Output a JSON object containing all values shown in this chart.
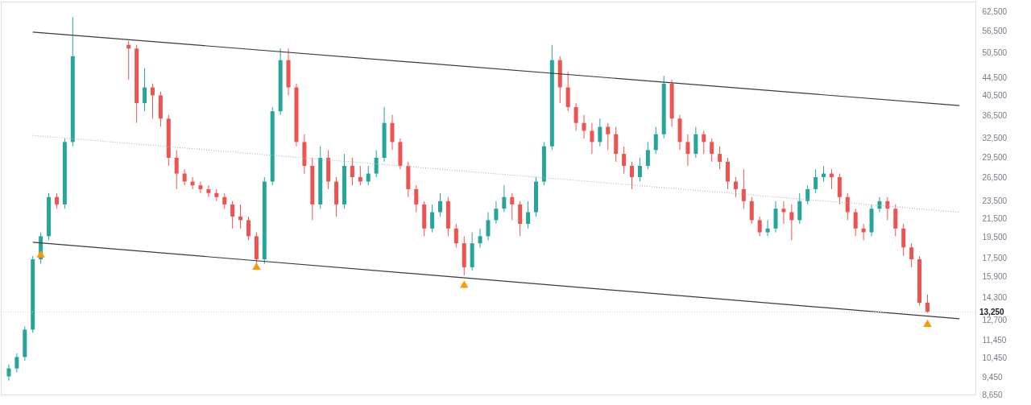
{
  "chart_data": {
    "type": "candlestick",
    "categories": [
      null,
      null,
      null,
      null,
      null,
      null,
      null,
      null,
      null,
      null,
      null,
      null,
      null,
      null,
      null,
      null,
      null,
      null,
      null,
      null,
      null,
      null,
      null,
      null,
      null,
      null,
      null,
      null,
      null,
      null,
      null,
      null,
      null,
      null,
      null,
      null,
      null,
      null,
      null,
      null,
      null,
      null,
      null,
      null,
      null,
      null,
      null,
      null,
      null,
      null,
      null,
      null,
      null,
      null,
      null,
      null,
      null,
      null,
      null,
      null,
      null,
      null,
      null,
      null,
      null,
      null,
      null,
      null,
      null,
      null,
      null,
      null,
      null,
      null,
      null,
      null,
      null,
      null,
      null,
      null,
      null,
      null,
      null,
      null,
      null,
      null,
      null,
      null,
      null,
      null,
      null,
      null,
      null,
      null,
      null,
      null,
      null,
      null,
      null,
      null,
      null,
      null,
      null,
      null,
      null,
      null,
      null,
      null,
      null,
      null,
      null,
      null,
      null,
      null,
      null,
      null,
      null,
      null,
      null,
      null,
      null
    ],
    "ylim": [
      8650,
      65900
    ],
    "log": true,
    "grid": false,
    "tick_labels": "y",
    "yticks": [
      {
        "value": 8650,
        "label": "8,650"
      },
      {
        "value": 9450,
        "label": "9,450"
      },
      {
        "value": 10450,
        "label": "10,450"
      },
      {
        "value": 11450,
        "label": "11,450"
      },
      {
        "value": 12700,
        "label": "12,700"
      },
      {
        "value": 14300,
        "label": "14,300"
      },
      {
        "value": 15900,
        "label": "15,900"
      },
      {
        "value": 17500,
        "label": "17,500"
      },
      {
        "value": 19500,
        "label": "19,500"
      },
      {
        "value": 21500,
        "label": "21,500"
      },
      {
        "value": 23500,
        "label": "23,500"
      },
      {
        "value": 26500,
        "label": "26,500"
      },
      {
        "value": 29500,
        "label": "29,500"
      },
      {
        "value": 32500,
        "label": "32,500"
      },
      {
        "value": 36500,
        "label": "36,500"
      },
      {
        "value": 40500,
        "label": "40,500"
      },
      {
        "value": 44500,
        "label": "44,500"
      },
      {
        "value": 50500,
        "label": "50,500"
      },
      {
        "value": 56500,
        "label": "56,500"
      },
      {
        "value": 62500,
        "label": "62,500"
      }
    ],
    "ref_lines": [
      {
        "axis": "y",
        "value": 13250,
        "label": "13,250",
        "color": "#d1d4dc",
        "line_style": "dotted"
      }
    ],
    "series": [
      {
        "ohlc": [
          [
            9500,
            10100,
            9300,
            9900
          ],
          [
            9900,
            10700,
            9700,
            10500
          ],
          [
            10500,
            12300,
            10300,
            12100
          ],
          [
            12100,
            17700,
            11900,
            17400
          ],
          [
            17400,
            20000,
            17000,
            19600
          ],
          [
            19600,
            24500,
            19200,
            24000
          ],
          [
            24000,
            24500,
            22600,
            23100
          ],
          [
            23100,
            32500,
            22600,
            31900
          ],
          [
            31900,
            60800,
            31200,
            49700
          ],
          null,
          null,
          null,
          null,
          null,
          null,
          [
            52700,
            53800,
            44000,
            51700
          ],
          [
            51700,
            52700,
            35200,
            39000
          ],
          [
            39000,
            46700,
            37400,
            42300
          ],
          [
            42300,
            43100,
            36000,
            40600
          ],
          [
            40600,
            41400,
            34500,
            36000
          ],
          [
            36000,
            36700,
            28200,
            29400
          ],
          [
            29400,
            30600,
            25000,
            27100
          ],
          [
            27100,
            27700,
            25500,
            26000
          ],
          [
            26000,
            26600,
            25000,
            25500
          ],
          [
            25500,
            26000,
            24500,
            25000
          ],
          [
            25000,
            25500,
            24000,
            24500
          ],
          [
            24500,
            25000,
            23500,
            24000
          ],
          [
            24000,
            24500,
            22600,
            23100
          ],
          [
            23100,
            23500,
            20400,
            21700
          ],
          [
            21700,
            23100,
            20400,
            21300
          ],
          [
            21300,
            21700,
            19200,
            19600
          ],
          [
            19600,
            20000,
            17000,
            17400
          ],
          [
            17400,
            26600,
            17000,
            26000
          ],
          [
            26000,
            38200,
            25500,
            37400
          ],
          [
            37400,
            51700,
            36700,
            48700
          ],
          [
            48700,
            51700,
            40600,
            42300
          ],
          [
            42300,
            43100,
            31200,
            31900
          ],
          [
            31900,
            33200,
            27100,
            28200
          ],
          [
            28200,
            29400,
            21300,
            23100
          ],
          [
            23100,
            31200,
            22600,
            29400
          ],
          [
            29400,
            30600,
            25000,
            26000
          ],
          [
            26000,
            26600,
            21700,
            23100
          ],
          [
            23100,
            30000,
            22600,
            28200
          ],
          [
            28200,
            29400,
            25500,
            26600
          ],
          [
            26600,
            28200,
            25500,
            26000
          ],
          [
            26000,
            28200,
            25500,
            27100
          ],
          [
            27100,
            30600,
            26600,
            29400
          ],
          [
            29400,
            38200,
            28800,
            35200
          ],
          [
            35200,
            36700,
            30600,
            31900
          ],
          [
            31900,
            32500,
            27700,
            28200
          ],
          [
            28200,
            28800,
            24000,
            25000
          ],
          [
            25000,
            25500,
            22200,
            23100
          ],
          [
            23100,
            23500,
            19600,
            20400
          ],
          [
            20400,
            23100,
            20000,
            22200
          ],
          [
            22200,
            24500,
            21700,
            23500
          ],
          [
            23500,
            24000,
            19600,
            20400
          ],
          [
            20400,
            20900,
            18500,
            18900
          ],
          [
            18900,
            19600,
            16000,
            16700
          ],
          [
            16700,
            20000,
            16400,
            18900
          ],
          [
            18900,
            20400,
            18500,
            19600
          ],
          [
            19600,
            22200,
            19200,
            21300
          ],
          [
            21300,
            23500,
            20900,
            22600
          ],
          [
            22600,
            25500,
            22200,
            24000
          ],
          [
            24000,
            24500,
            21300,
            23100
          ],
          [
            23100,
            23500,
            19600,
            20900
          ],
          [
            20900,
            23500,
            20400,
            22200
          ],
          [
            22200,
            26600,
            21700,
            26000
          ],
          [
            26000,
            31900,
            25500,
            31200
          ],
          [
            31200,
            52700,
            30600,
            48700
          ],
          [
            48700,
            49700,
            39000,
            42300
          ],
          [
            42300,
            45800,
            37400,
            38200
          ],
          [
            38200,
            39000,
            33800,
            35200
          ],
          [
            35200,
            36700,
            32500,
            33800
          ],
          [
            33800,
            35200,
            30000,
            31900
          ],
          [
            31900,
            36000,
            31200,
            34500
          ],
          [
            34500,
            35200,
            30600,
            33200
          ],
          [
            33200,
            34500,
            28800,
            30000
          ],
          [
            30000,
            31200,
            27100,
            28200
          ],
          [
            28200,
            28800,
            25000,
            26600
          ],
          [
            26600,
            29400,
            26000,
            28200
          ],
          [
            28200,
            31900,
            27700,
            30600
          ],
          [
            30600,
            34500,
            30000,
            33200
          ],
          [
            33200,
            44900,
            32500,
            43100
          ],
          [
            43100,
            44000,
            34500,
            36000
          ],
          [
            36000,
            36700,
            30600,
            31900
          ],
          [
            31900,
            33200,
            28200,
            30000
          ],
          [
            30000,
            34500,
            29400,
            33200
          ],
          [
            33200,
            33800,
            30000,
            31900
          ],
          [
            31900,
            32500,
            28800,
            30000
          ],
          [
            30000,
            31200,
            27700,
            28800
          ],
          [
            28800,
            29400,
            25000,
            26000
          ],
          [
            26000,
            26600,
            24000,
            25000
          ],
          [
            25000,
            27700,
            22600,
            23500
          ],
          [
            23500,
            24000,
            20900,
            21300
          ],
          [
            21300,
            21700,
            19600,
            20000
          ],
          [
            20000,
            21300,
            19600,
            20400
          ],
          [
            20400,
            23500,
            20000,
            22600
          ],
          [
            22600,
            23500,
            20900,
            22200
          ],
          [
            22200,
            23100,
            19200,
            21300
          ],
          [
            21300,
            24500,
            20900,
            23500
          ],
          [
            23500,
            25500,
            23100,
            25000
          ],
          [
            25000,
            27700,
            24500,
            26600
          ],
          [
            26600,
            28200,
            26000,
            27100
          ],
          [
            27100,
            27700,
            25000,
            26600
          ],
          [
            26600,
            27100,
            23100,
            24000
          ],
          [
            24000,
            24500,
            21300,
            22200
          ],
          [
            22200,
            22600,
            19600,
            20400
          ],
          [
            20400,
            20900,
            19200,
            20000
          ],
          [
            20000,
            23100,
            19600,
            22600
          ],
          [
            22600,
            24000,
            22200,
            23500
          ],
          [
            23500,
            24000,
            21300,
            22600
          ],
          [
            22600,
            23100,
            19600,
            20400
          ],
          [
            20400,
            20900,
            17700,
            18500
          ],
          [
            18500,
            18900,
            16700,
            17400
          ],
          [
            17400,
            17700,
            13700,
            13900
          ],
          [
            13900,
            14500,
            13200,
            13250
          ],
          null,
          null,
          null,
          null,
          null
        ],
        "colors": [
          "#26a69a",
          "#26a69a",
          "#26a69a",
          "#26a69a",
          "#26a69a",
          "#26a69a",
          "#ef5350",
          "#26a69a",
          "#26a69a",
          null,
          null,
          null,
          null,
          null,
          null,
          "#ef5350",
          "#ef5350",
          "#26a69a",
          "#ef5350",
          "#ef5350",
          "#ef5350",
          "#ef5350",
          "#ef5350",
          "#ef5350",
          "#ef5350",
          "#ef5350",
          "#ef5350",
          "#ef5350",
          "#ef5350",
          "#ef5350",
          "#ef5350",
          "#ef5350",
          "#26a69a",
          "#26a69a",
          "#26a69a",
          "#ef5350",
          "#ef5350",
          "#ef5350",
          "#ef5350",
          "#26a69a",
          "#ef5350",
          "#ef5350",
          "#26a69a",
          "#ef5350",
          "#ef5350",
          "#26a69a",
          "#26a69a",
          "#26a69a",
          "#ef5350",
          "#ef5350",
          "#ef5350",
          "#ef5350",
          "#ef5350",
          "#26a69a",
          "#26a69a",
          "#ef5350",
          "#ef5350",
          "#ef5350",
          "#26a69a",
          "#26a69a",
          "#26a69a",
          "#26a69a",
          "#26a69a",
          "#ef5350",
          "#ef5350",
          "#26a69a",
          "#26a69a",
          "#26a69a",
          "#26a69a",
          "#ef5350",
          "#ef5350",
          "#ef5350",
          "#ef5350",
          "#ef5350",
          "#26a69a",
          "#ef5350",
          "#ef5350",
          "#ef5350",
          "#ef5350",
          "#26a69a",
          "#26a69a",
          "#26a69a",
          "#26a69a",
          "#ef5350",
          "#ef5350",
          "#ef5350",
          "#26a69a",
          "#ef5350",
          "#ef5350",
          "#ef5350",
          "#ef5350",
          "#ef5350",
          "#ef5350",
          "#ef5350",
          "#ef5350",
          "#26a69a",
          "#26a69a",
          "#ef5350",
          "#ef5350",
          "#26a69a",
          "#26a69a",
          "#26a69a",
          "#26a69a",
          "#ef5350",
          "#ef5350",
          "#ef5350",
          "#ef5350",
          "#ef5350",
          "#26a69a",
          "#26a69a",
          "#ef5350",
          "#ef5350",
          "#ef5350",
          "#ef5350",
          "#ef5350",
          "#ef5350",
          null,
          null,
          null,
          null,
          null
        ]
      },
      {
        "type": "line",
        "color": "#3a3a3a",
        "line_style": "solid",
        "values": [
          null,
          null,
          null,
          56300,
          null,
          null,
          null,
          null,
          null,
          null,
          null,
          null,
          null,
          null,
          null,
          null,
          null,
          null,
          null,
          null,
          null,
          null,
          null,
          null,
          null,
          null,
          null,
          null,
          null,
          null,
          null,
          null,
          null,
          null,
          null,
          null,
          null,
          null,
          null,
          null,
          null,
          null,
          null,
          null,
          null,
          null,
          null,
          null,
          null,
          null,
          null,
          null,
          null,
          null,
          null,
          null,
          null,
          null,
          null,
          null,
          null,
          null,
          null,
          null,
          null,
          null,
          null,
          null,
          null,
          null,
          null,
          null,
          null,
          null,
          null,
          null,
          null,
          null,
          null,
          null,
          null,
          null,
          null,
          null,
          null,
          null,
          null,
          null,
          null,
          null,
          null,
          null,
          null,
          null,
          null,
          null,
          null,
          null,
          null,
          null,
          null,
          null,
          null,
          null,
          null,
          null,
          null,
          null,
          null,
          null,
          null,
          null,
          null,
          null,
          null,
          null,
          null,
          null,
          null,
          38500,
          null
        ]
      },
      {
        "type": "line",
        "color": "#b2b5be",
        "line_style": "dotted",
        "values": [
          null,
          null,
          null,
          33000,
          null,
          null,
          null,
          null,
          null,
          null,
          null,
          null,
          null,
          null,
          null,
          null,
          null,
          null,
          null,
          null,
          null,
          null,
          null,
          null,
          null,
          null,
          null,
          null,
          null,
          null,
          null,
          null,
          null,
          null,
          null,
          null,
          null,
          null,
          null,
          null,
          null,
          null,
          null,
          null,
          null,
          null,
          null,
          null,
          null,
          null,
          null,
          null,
          null,
          null,
          null,
          null,
          null,
          null,
          null,
          null,
          null,
          null,
          null,
          null,
          null,
          null,
          null,
          null,
          null,
          null,
          null,
          null,
          null,
          null,
          null,
          null,
          null,
          null,
          null,
          null,
          null,
          null,
          null,
          null,
          null,
          null,
          null,
          null,
          null,
          null,
          null,
          null,
          null,
          null,
          null,
          null,
          null,
          null,
          null,
          null,
          null,
          null,
          null,
          null,
          null,
          null,
          null,
          null,
          null,
          null,
          null,
          null,
          null,
          null,
          null,
          null,
          null,
          null,
          null,
          22200,
          null
        ]
      },
      {
        "type": "line",
        "color": "#3a3a3a",
        "line_style": "solid",
        "values": [
          null,
          null,
          null,
          19000,
          null,
          null,
          null,
          null,
          null,
          null,
          null,
          null,
          null,
          null,
          null,
          null,
          null,
          null,
          null,
          null,
          null,
          null,
          null,
          null,
          null,
          null,
          null,
          null,
          null,
          null,
          null,
          null,
          null,
          null,
          null,
          null,
          null,
          null,
          null,
          null,
          null,
          null,
          null,
          null,
          null,
          null,
          null,
          null,
          null,
          null,
          null,
          null,
          null,
          null,
          null,
          null,
          null,
          null,
          null,
          null,
          null,
          null,
          null,
          null,
          null,
          null,
          null,
          null,
          null,
          null,
          null,
          null,
          null,
          null,
          null,
          null,
          null,
          null,
          null,
          null,
          null,
          null,
          null,
          null,
          null,
          null,
          null,
          null,
          null,
          null,
          null,
          null,
          null,
          null,
          null,
          null,
          null,
          null,
          null,
          null,
          null,
          null,
          null,
          null,
          null,
          null,
          null,
          null,
          null,
          null,
          null,
          null,
          null,
          null,
          null,
          null,
          null,
          null,
          null,
          12800,
          null
        ]
      },
      {
        "type": "scatter",
        "marker": "triangle",
        "color": "#ff9800",
        "values": [
          null,
          null,
          null,
          null,
          17900,
          null,
          null,
          null,
          null,
          null,
          null,
          null,
          null,
          null,
          null,
          null,
          null,
          null,
          null,
          null,
          null,
          null,
          null,
          null,
          null,
          null,
          null,
          null,
          null,
          null,
          null,
          16800,
          null,
          null,
          null,
          null,
          null,
          null,
          null,
          null,
          null,
          null,
          null,
          null,
          null,
          null,
          null,
          null,
          null,
          null,
          null,
          null,
          null,
          null,
          null,
          null,
          null,
          15300,
          null,
          null,
          null,
          null,
          null,
          null,
          null,
          null,
          null,
          null,
          null,
          null,
          null,
          null,
          null,
          null,
          null,
          null,
          null,
          null,
          null,
          null,
          null,
          null,
          null,
          null,
          null,
          null,
          null,
          null,
          null,
          null,
          null,
          null,
          null,
          null,
          null,
          null,
          null,
          null,
          null,
          null,
          null,
          null,
          null,
          null,
          null,
          null,
          null,
          null,
          null,
          null,
          null,
          null,
          null,
          null,
          null,
          12500,
          null,
          null,
          null,
          null,
          null
        ]
      }
    ]
  }
}
